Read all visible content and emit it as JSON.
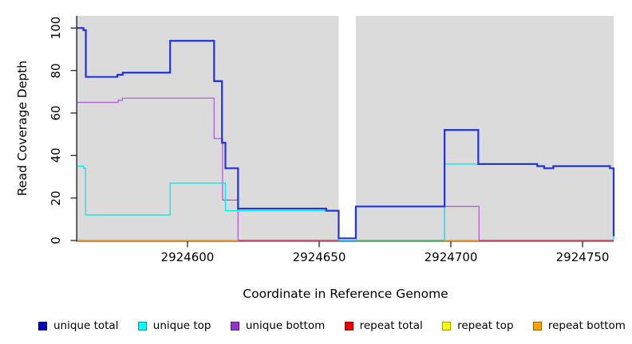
{
  "chart_data": {
    "type": "line",
    "subtype": "step-after-coverage-plot",
    "title": "",
    "xlabel": "Coordinate in Reference Genome",
    "ylabel": "Read Coverage Depth",
    "xlim": [
      2924558.2,
      2924761.8
    ],
    "ylim": [
      0,
      105.7
    ],
    "x_ticks": [
      "2924600",
      "2924650",
      "2924700",
      "2924750"
    ],
    "x_tick_values": [
      2924600,
      2924650,
      2924700,
      2924750
    ],
    "y_ticks": [
      "0",
      "20",
      "40",
      "60",
      "80",
      "100"
    ],
    "y_tick_values": [
      0,
      20,
      40,
      60,
      80,
      100
    ],
    "grid": "off",
    "plot_background": "#DBDBDB",
    "no_data_gap": {
      "x_start": 2924657.4,
      "x_end": 2924663.9
    },
    "series": [
      {
        "name": "unique total",
        "color": "#2233DD",
        "width": 2.2,
        "drawn": true,
        "points": [
          [
            2924558.2,
            100
          ],
          [
            2924560.5,
            99
          ],
          [
            2924561.4,
            77
          ],
          [
            2924573.4,
            78
          ],
          [
            2924575.4,
            79
          ],
          [
            2924593.4,
            94
          ],
          [
            2924610.1,
            75
          ],
          [
            2924613.1,
            46
          ],
          [
            2924614.4,
            34
          ],
          [
            2924619.2,
            15
          ],
          [
            2924652.7,
            14
          ],
          [
            2924657.4,
            1
          ],
          [
            2924663.9,
            16
          ],
          [
            2924697.6,
            52
          ],
          [
            2924710.4,
            36
          ],
          [
            2924732.8,
            35
          ],
          [
            2924735.4,
            34
          ],
          [
            2924738.9,
            35
          ],
          [
            2924760.4,
            34
          ],
          [
            2924761.8,
            2
          ]
        ]
      },
      {
        "name": "unique top",
        "color": "#00E8F0",
        "width": 1.3,
        "drawn": true,
        "points": [
          [
            2924558.2,
            35
          ],
          [
            2924560.6,
            34
          ],
          [
            2924561.3,
            12
          ],
          [
            2924593.4,
            27
          ],
          [
            2924614.4,
            14
          ],
          [
            2924657.4,
            0
          ],
          [
            2924697.6,
            36
          ],
          [
            2924732.8,
            35
          ],
          [
            2924735.4,
            34
          ],
          [
            2924738.9,
            35
          ],
          [
            2924760.4,
            34
          ],
          [
            2924761.8,
            0
          ]
        ]
      },
      {
        "name": "unique bottom",
        "color": "#B45FD6",
        "width": 1.3,
        "drawn": true,
        "points": [
          [
            2924558.2,
            65
          ],
          [
            2924573.7,
            66
          ],
          [
            2924575.3,
            67
          ],
          [
            2924610.1,
            48
          ],
          [
            2924613.3,
            19
          ],
          [
            2924619.2,
            0
          ],
          [
            2924697.6,
            16
          ],
          [
            2924710.7,
            0
          ]
        ]
      },
      {
        "name": "repeat total",
        "color": "#D94F70",
        "width": 1.6,
        "drawn": false,
        "points": [
          [
            2924558.2,
            0
          ],
          [
            2924761.8,
            0
          ]
        ]
      },
      {
        "name": "repeat top",
        "color": "#EEEE22",
        "width": 1.6,
        "drawn": false,
        "points": [
          [
            2924558.2,
            0
          ],
          [
            2924761.8,
            0
          ]
        ]
      },
      {
        "name": "repeat bottom",
        "color": "#FFA11E",
        "width": 1.6,
        "drawn": false,
        "points": [
          [
            2924558.2,
            0
          ],
          [
            2924761.8,
            0
          ]
        ]
      }
    ],
    "baseline_segments": [
      {
        "x1": 2924558.2,
        "x2": 2924619.2,
        "color": "#FFA11E",
        "series": "repeat bottom"
      },
      {
        "x1": 2924619.2,
        "x2": 2924657.4,
        "color": "#D94F70",
        "series": "repeat total"
      },
      {
        "x1": 2924663.9,
        "x2": 2924697.6,
        "color": "#5FBE6A",
        "series": "repeat top / unique top overlap"
      },
      {
        "x1": 2924697.6,
        "x2": 2924710.7,
        "color": "#FFA11E",
        "series": "repeat bottom"
      },
      {
        "x1": 2924710.7,
        "x2": 2924761.8,
        "color": "#D94F70",
        "series": "repeat total"
      }
    ]
  },
  "legend": {
    "items": [
      {
        "label": "unique total",
        "fill": "#0000CC",
        "border": "#000066"
      },
      {
        "label": "unique top",
        "fill": "#00FFFF",
        "border": "#009999"
      },
      {
        "label": "unique bottom",
        "fill": "#9932CC",
        "border": "#5C1A80"
      },
      {
        "label": "repeat total",
        "fill": "#EE0000",
        "border": "#880000"
      },
      {
        "label": "repeat top",
        "fill": "#FFFF00",
        "border": "#999900"
      },
      {
        "label": "repeat bottom",
        "fill": "#FFA500",
        "border": "#995C00"
      }
    ]
  },
  "axis_colors": {
    "spine": "#2F2F2F",
    "tick": "#333333"
  }
}
